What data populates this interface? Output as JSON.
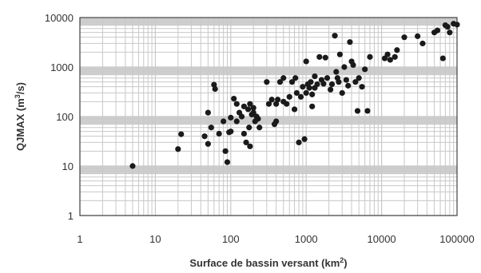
{
  "chart_data": {
    "type": "scatter",
    "title": "",
    "xlabel": "Surface de bassin versant (km",
    "xlabel_sup": "2",
    "xlabel_end": ")",
    "ylabel": "QJMAX (m",
    "ylabel_sup": "3",
    "ylabel_end": "/s)",
    "x_scale": "log",
    "y_scale": "log",
    "xlim": [
      1,
      100000
    ],
    "ylim": [
      1,
      10000
    ],
    "grid": true,
    "x_ticks": [
      "1",
      "10",
      "100",
      "1000",
      "10000",
      "100000"
    ],
    "y_ticks": [
      "1",
      "10",
      "100",
      "1000",
      "10000"
    ],
    "point_color": "#1a1a1a",
    "points": [
      [
        5,
        10
      ],
      [
        20,
        22
      ],
      [
        22,
        44
      ],
      [
        45,
        40
      ],
      [
        50,
        28
      ],
      [
        50,
        120
      ],
      [
        55,
        60
      ],
      [
        60,
        440
      ],
      [
        62,
        360
      ],
      [
        70,
        45
      ],
      [
        80,
        80
      ],
      [
        85,
        20
      ],
      [
        90,
        12
      ],
      [
        95,
        48
      ],
      [
        100,
        95
      ],
      [
        100,
        50
      ],
      [
        110,
        230
      ],
      [
        120,
        180
      ],
      [
        120,
        80
      ],
      [
        130,
        120
      ],
      [
        140,
        100
      ],
      [
        150,
        45
      ],
      [
        150,
        160
      ],
      [
        160,
        30
      ],
      [
        170,
        140
      ],
      [
        175,
        60
      ],
      [
        180,
        25
      ],
      [
        180,
        180
      ],
      [
        190,
        110
      ],
      [
        200,
        120
      ],
      [
        200,
        150
      ],
      [
        210,
        80
      ],
      [
        220,
        100
      ],
      [
        230,
        90
      ],
      [
        240,
        60
      ],
      [
        300,
        500
      ],
      [
        320,
        180
      ],
      [
        350,
        220
      ],
      [
        380,
        70
      ],
      [
        400,
        80
      ],
      [
        400,
        180
      ],
      [
        420,
        220
      ],
      [
        450,
        500
      ],
      [
        500,
        200
      ],
      [
        500,
        600
      ],
      [
        550,
        180
      ],
      [
        600,
        250
      ],
      [
        650,
        500
      ],
      [
        700,
        140
      ],
      [
        720,
        600
      ],
      [
        750,
        300
      ],
      [
        800,
        30
      ],
      [
        850,
        250
      ],
      [
        900,
        400
      ],
      [
        950,
        35
      ],
      [
        1000,
        1300
      ],
      [
        1000,
        300
      ],
      [
        1050,
        450
      ],
      [
        1100,
        380
      ],
      [
        1150,
        500
      ],
      [
        1200,
        280
      ],
      [
        1200,
        160
      ],
      [
        1300,
        650
      ],
      [
        1300,
        380
      ],
      [
        1400,
        450
      ],
      [
        1500,
        1600
      ],
      [
        1600,
        550
      ],
      [
        1700,
        460
      ],
      [
        1800,
        1550
      ],
      [
        1900,
        600
      ],
      [
        2100,
        350
      ],
      [
        2200,
        450
      ],
      [
        2400,
        4300
      ],
      [
        2500,
        800
      ],
      [
        2600,
        600
      ],
      [
        2700,
        500
      ],
      [
        2800,
        1800
      ],
      [
        3000,
        300
      ],
      [
        3200,
        1000
      ],
      [
        3400,
        550
      ],
      [
        3600,
        420
      ],
      [
        3800,
        3200
      ],
      [
        4000,
        1300
      ],
      [
        4200,
        1100
      ],
      [
        4500,
        500
      ],
      [
        4800,
        130
      ],
      [
        5000,
        600
      ],
      [
        5500,
        400
      ],
      [
        6000,
        900
      ],
      [
        6500,
        130
      ],
      [
        7000,
        1600
      ],
      [
        11000,
        1500
      ],
      [
        12000,
        1800
      ],
      [
        13000,
        1400
      ],
      [
        15000,
        1600
      ],
      [
        16000,
        2200
      ],
      [
        20000,
        4000
      ],
      [
        30000,
        4200
      ],
      [
        35000,
        3000
      ],
      [
        50000,
        5000
      ],
      [
        55000,
        5500
      ],
      [
        65000,
        1500
      ],
      [
        70000,
        7000
      ],
      [
        75000,
        6500
      ],
      [
        80000,
        5000
      ],
      [
        90000,
        7500
      ],
      [
        100000,
        7200
      ]
    ]
  }
}
